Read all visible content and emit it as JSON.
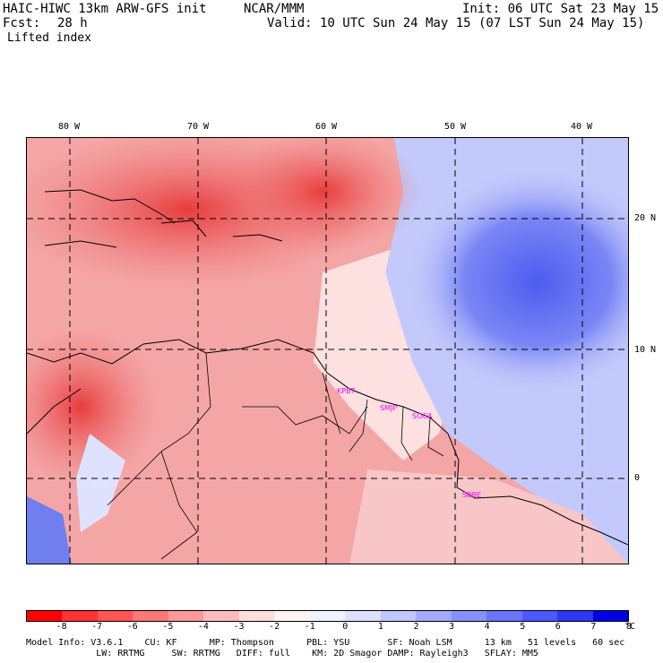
{
  "header": {
    "model": "HAIC-HIWC 13km ARW-GFS init",
    "org": "NCAR/MMM",
    "init": "Init: 06 UTC Sat 23 May 15",
    "fcst_label": "Fcst:",
    "fcst_value": "28 h",
    "valid": "Valid: 10 UTC Sun 24 May 15 (07 LST Sun 24 May 15)",
    "field": "Lifted index"
  },
  "map": {
    "lon_labels": [
      "80 W",
      "70 W",
      "60 W",
      "50 W",
      "40 W"
    ],
    "lat_labels": [
      "20 N",
      "10 N",
      "0"
    ],
    "cities": [
      "KPBT",
      "SMJP",
      "SOCA",
      "SBBE"
    ]
  },
  "colorbar": {
    "colors": [
      "#ff0000",
      "#ff3333",
      "#ff5555",
      "#ff7777",
      "#ff9999",
      "#ffbbbb",
      "#ffdddd",
      "#fff4f4",
      "#f2f2ff",
      "#dde0ff",
      "#c0c6ff",
      "#a2aaff",
      "#8590ff",
      "#6a74ff",
      "#4d56ff",
      "#2f38f5",
      "#0000e6"
    ],
    "labels": [
      "-8",
      "-7",
      "-6",
      "-5",
      "-4",
      "-3",
      "-2",
      "-1",
      "0",
      "1",
      "2",
      "3",
      "4",
      "5",
      "6",
      "7",
      "8"
    ],
    "unit": "°C"
  },
  "info": {
    "line1": "Model Info: V3.6.1    CU: KF      MP: Thompson      PBL: YSU       SF: Noah LSM      13 km   51 levels   60 sec",
    "line2": "             LW: RRTMG     SW: RRTMG   DIFF: full    KM: 2D Smagor DAMP: Rayleigh3   SFLAY: MM5"
  }
}
